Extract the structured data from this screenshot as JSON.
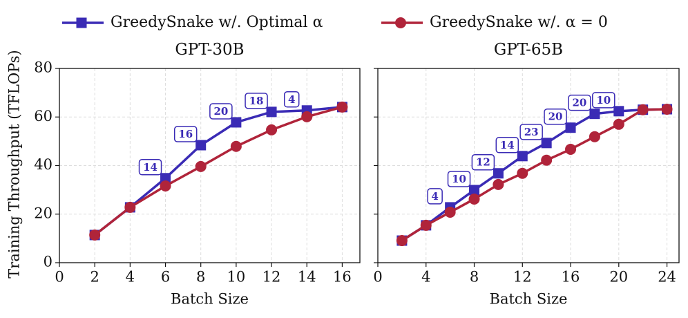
{
  "chart_data": [
    {
      "type": "line",
      "title": "GPT-30B",
      "xlabel": "Batch Size",
      "ylabel": "Training Throughput (TFLOPs)",
      "xlim": [
        0,
        17
      ],
      "xticks": [
        0,
        2,
        4,
        6,
        8,
        10,
        12,
        14,
        16
      ],
      "ylim": [
        0,
        80
      ],
      "yticks": [
        0,
        20,
        40,
        60,
        80
      ],
      "grid": true,
      "x": [
        2,
        4,
        6,
        8,
        10,
        12,
        14,
        16
      ],
      "series": [
        {
          "name": "GreedySnake w/. Optimal α",
          "color": "#3a2bb5",
          "marker": "square",
          "values": [
            11.4,
            22.8,
            34.8,
            48.4,
            57.8,
            62.1,
            62.7,
            64.1
          ]
        },
        {
          "name": "GreedySnake w/. α = 0",
          "color": "#b0243a",
          "marker": "circle",
          "values": [
            11.4,
            22.8,
            31.6,
            39.6,
            47.9,
            54.7,
            60.1,
            64.1
          ]
        }
      ],
      "annotations": [
        {
          "x": 6,
          "text": "14"
        },
        {
          "x": 8,
          "text": "16"
        },
        {
          "x": 10,
          "text": "20"
        },
        {
          "x": 12,
          "text": "18"
        },
        {
          "x": 14,
          "text": "4"
        }
      ]
    },
    {
      "type": "line",
      "title": "GPT-65B",
      "xlabel": "Batch Size",
      "xlim": [
        0,
        25
      ],
      "xticks": [
        0,
        4,
        8,
        12,
        16,
        20,
        24
      ],
      "ylim": [
        0,
        80
      ],
      "yticks": [
        0,
        20,
        40,
        60,
        80
      ],
      "grid": true,
      "x": [
        2,
        4,
        6,
        8,
        10,
        12,
        14,
        16,
        18,
        20,
        22,
        24
      ],
      "series": [
        {
          "color": "#3a2bb5",
          "marker": "square",
          "values": [
            9.1,
            15.4,
            22.8,
            29.9,
            36.8,
            43.9,
            49.3,
            55.6,
            61.3,
            62.4,
            63.0,
            63.2
          ]
        },
        {
          "color": "#b0243a",
          "marker": "circle",
          "values": [
            9.1,
            15.4,
            20.8,
            26.2,
            32.2,
            36.8,
            42.2,
            46.7,
            51.9,
            57.0,
            63.0,
            63.2
          ]
        }
      ],
      "annotations": [
        {
          "x": 6,
          "text": "4"
        },
        {
          "x": 8,
          "text": "10"
        },
        {
          "x": 10,
          "text": "12"
        },
        {
          "x": 12,
          "text": "14"
        },
        {
          "x": 14,
          "text": "23"
        },
        {
          "x": 16,
          "text": "20"
        },
        {
          "x": 18,
          "text": "20"
        },
        {
          "x": 20,
          "text": "10"
        }
      ]
    }
  ]
}
